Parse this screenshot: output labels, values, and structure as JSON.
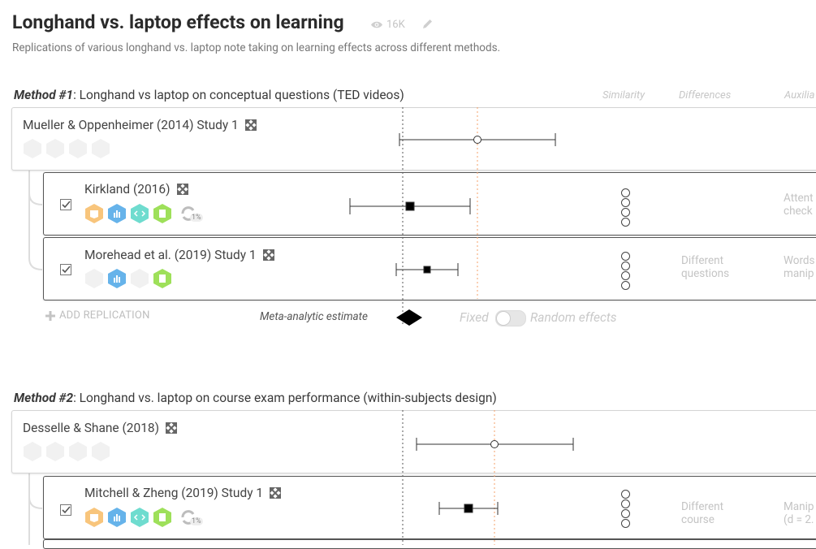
{
  "page": {
    "title": "Longhand vs. laptop effects on learning",
    "views": "16K",
    "subtitle": "Replications of various longhand vs. laptop note taking on learning effects across different methods."
  },
  "columns": {
    "similarity": "Similarity",
    "differences": "Differences",
    "auxiliary": "Auxilia"
  },
  "method1": {
    "label": "Method #1",
    "title": ": Longhand vs laptop on conceptual questions (TED videos)",
    "original": "Mueller & Oppenheimer (2014) Study 1",
    "replications": [
      {
        "name": "Kirkland (2016)",
        "replicability": "1%",
        "differences": "",
        "auxiliary_line1": "Attent",
        "auxiliary_line2": "check"
      },
      {
        "name": "Morehead et al. (2019) Study 1",
        "differences_line1": "Different",
        "differences_line2": "questions",
        "auxiliary_line1": "Words",
        "auxiliary_line2": "manip"
      }
    ],
    "add_replication": "ADD REPLICATION",
    "meta_label": "Meta-analytic estimate",
    "fixed_label": "Fixed",
    "random_label": "Random effects"
  },
  "method2": {
    "label": "Method #2",
    "title": ": Longhand vs. laptop on course exam performance (within-subjects design)",
    "original": "Desselle & Shane (2018)",
    "replications": [
      {
        "name": "Mitchell & Zheng (2019) Study 1",
        "replicability": "1%",
        "differences_line1": "Different",
        "differences_line2": "course",
        "auxiliary_line1": "Manip",
        "auxiliary_line2": "(d = 2."
      }
    ]
  },
  "colors": {
    "orange": "#f5a623",
    "blue": "#4aa3df",
    "teal": "#3fd1c2",
    "green": "#7ed321"
  }
}
